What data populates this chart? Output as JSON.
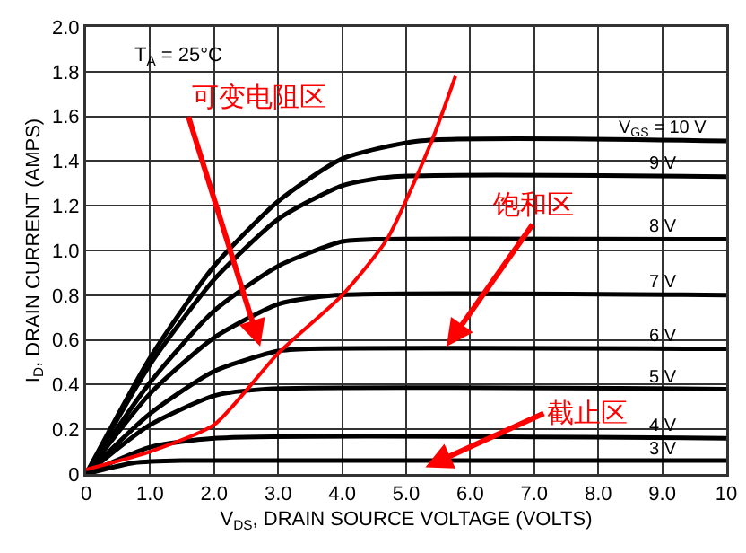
{
  "chart_data": {
    "type": "line",
    "xlabel": "V$_{DS}$, DRAIN SOURCE VOLTAGE (VOLTS)",
    "ylabel": "I$_{D}$, DRAIN CURRENT (AMPS)",
    "xlim": [
      0,
      10
    ],
    "ylim": [
      0,
      2
    ],
    "xticks": [
      0,
      {
        "value": 1,
        "label": "1.0"
      },
      {
        "value": 2,
        "label": "2.0"
      },
      {
        "value": 3,
        "label": "3.0"
      },
      {
        "value": 4,
        "label": "4.0"
      },
      {
        "value": 5,
        "label": "5.0"
      },
      {
        "value": 6,
        "label": "6.0"
      },
      {
        "value": 7,
        "label": "7.0"
      },
      {
        "value": 8,
        "label": "8.0"
      },
      {
        "value": 9,
        "label": "9.0"
      },
      10
    ],
    "yticks": [
      0,
      0.2,
      0.4,
      0.6,
      0.8,
      {
        "value": 1,
        "label": "1.0"
      },
      1.2,
      1.4,
      1.6,
      1.8,
      {
        "value": 2,
        "label": "2.0"
      }
    ],
    "grid": true,
    "legend": false,
    "marker": "none",
    "line_style": "solid",
    "series": [
      {
        "name": "V$_{GS}$ = 10 V",
        "color": "#000000",
        "x": [
          0,
          1,
          2,
          3,
          4,
          5.2,
          10
        ],
        "values": [
          0,
          0.52,
          0.93,
          1.22,
          1.41,
          1.49,
          1.49
        ]
      },
      {
        "name": "9 V",
        "color": "#000000",
        "x": [
          0,
          1,
          2,
          3,
          4,
          4.8,
          10
        ],
        "values": [
          0,
          0.49,
          0.87,
          1.14,
          1.29,
          1.33,
          1.33
        ]
      },
      {
        "name": "8 V",
        "color": "#000000",
        "x": [
          0,
          1,
          2,
          3,
          4,
          4.5,
          10
        ],
        "values": [
          0,
          0.41,
          0.73,
          0.93,
          1.04,
          1.05,
          1.05
        ]
      },
      {
        "name": "7 V",
        "color": "#000000",
        "x": [
          0,
          1,
          2,
          3,
          3.9,
          10
        ],
        "values": [
          0,
          0.36,
          0.61,
          0.76,
          0.8,
          0.8
        ]
      },
      {
        "name": "6 V",
        "color": "#000000",
        "x": [
          0,
          1,
          2,
          3,
          3.5,
          10
        ],
        "values": [
          0,
          0.27,
          0.46,
          0.55,
          0.56,
          0.56
        ]
      },
      {
        "name": "5 V",
        "color": "#000000",
        "x": [
          0,
          1,
          2,
          2.8,
          10
        ],
        "values": [
          0,
          0.22,
          0.35,
          0.38,
          0.38
        ]
      },
      {
        "name": "4 V",
        "color": "#000000",
        "x": [
          0,
          1,
          2,
          10
        ],
        "values": [
          0,
          0.12,
          0.16,
          0.16
        ]
      },
      {
        "name": "3 V",
        "color": "#000000",
        "x": [
          0,
          0.75,
          1.5,
          10
        ],
        "values": [
          0,
          0.05,
          0.06,
          0.06
        ]
      },
      {
        "color": "#ff0000",
        "x": [
          0,
          1,
          2,
          3,
          4,
          4.7,
          5.4,
          5.77
        ],
        "values": [
          0.02,
          0.1,
          0.22,
          0.54,
          0.8,
          1.05,
          1.49,
          1.78
        ]
      }
    ],
    "annotations": [
      "T$_{A}$ = 25°C",
      {
        "text": "可变电阻区",
        "x": 2.72,
        "y": 0.57
      },
      {
        "text": "饱和区",
        "x": 5.63,
        "y": 0.57
      },
      {
        "text": "截止区",
        "x": 5.3,
        "y": 0.03
      }
    ]
  }
}
